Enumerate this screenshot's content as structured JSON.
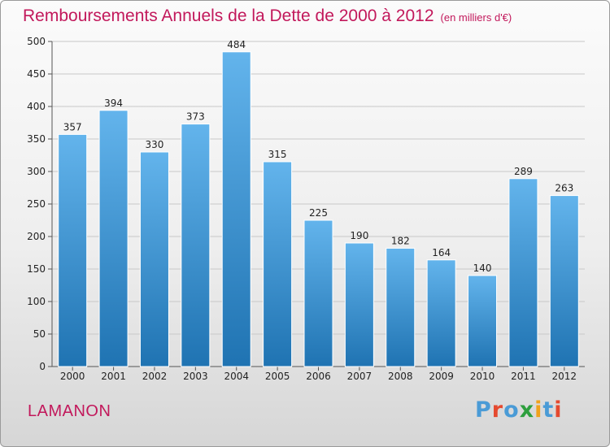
{
  "page": {
    "title": "Remboursements Annuels de la Dette de 2000 à 2012",
    "subtitle": "(en milliers d'€)",
    "place": "LAMANON",
    "logo": "Proxiti",
    "colors": {
      "title": "#c2185b",
      "bar_top": "#63b4ec",
      "bar_bottom": "#1f73b2",
      "logo_letters": [
        "#4a9bd6",
        "#e5492f",
        "#4a9bd6",
        "#2e9f3e",
        "#f0a21c",
        "#4a9bd6",
        "#e5492f"
      ]
    }
  },
  "chart_data": {
    "type": "bar",
    "title": "Remboursements Annuels de la Dette de 2000 à 2012",
    "subtitle": "(en milliers d'€)",
    "categories": [
      "2000",
      "2001",
      "2002",
      "2003",
      "2004",
      "2005",
      "2006",
      "2007",
      "2008",
      "2009",
      "2010",
      "2011",
      "2012"
    ],
    "values": [
      357,
      394,
      330,
      373,
      484,
      315,
      225,
      190,
      182,
      164,
      140,
      289,
      263
    ],
    "ylim": [
      0,
      500
    ],
    "yticks": [
      0,
      50,
      100,
      150,
      200,
      250,
      300,
      350,
      400,
      450,
      500
    ],
    "grid": "horizontal",
    "data_labels": true
  }
}
